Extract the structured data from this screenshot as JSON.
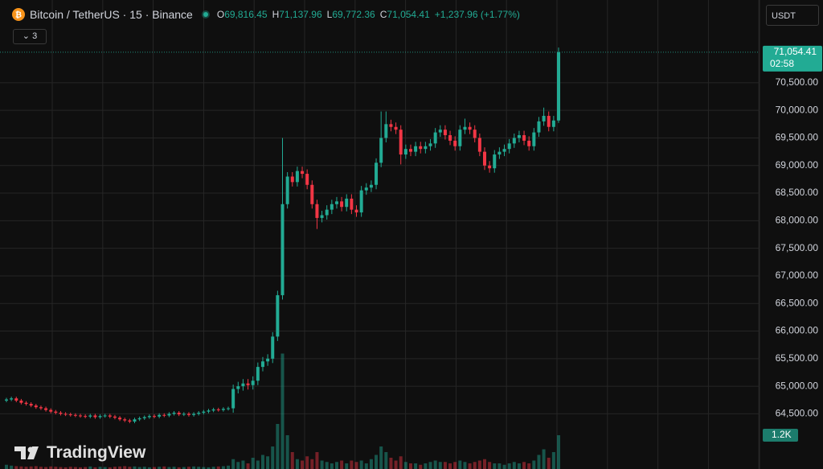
{
  "chart_data": {
    "type": "candlestick",
    "legend": {
      "symbol": "Bitcoin / TetherUS · 15 · Binance",
      "o_label": "O",
      "o": "69,816.45",
      "h_label": "H",
      "h": "71,137.96",
      "l_label": "L",
      "l": "69,772.36",
      "c_label": "C",
      "c": "71,054.41",
      "change": "+1,237.96 (+1.77%)"
    },
    "indicators_count": "3",
    "currency": "USDT",
    "last_price_label": "71,054.41",
    "countdown": "02:58",
    "last_volume_label": "1.2K",
    "brand": "TradingView",
    "up_color": "#22ab94",
    "down_color": "#f23645",
    "ylim": [
      63500,
      72000
    ],
    "yticks": [
      {
        "value": 64500,
        "label": "64,500.00"
      },
      {
        "value": 65000,
        "label": "65,000.00"
      },
      {
        "value": 65500,
        "label": "65,500.00"
      },
      {
        "value": 66000,
        "label": "66,000.00"
      },
      {
        "value": 66500,
        "label": "66,500.00"
      },
      {
        "value": 67000,
        "label": "67,000.00"
      },
      {
        "value": 67500,
        "label": "67,500.00"
      },
      {
        "value": 68000,
        "label": "68,000.00"
      },
      {
        "value": 68500,
        "label": "68,500.00"
      },
      {
        "value": 69000,
        "label": "69,000.00"
      },
      {
        "value": 69500,
        "label": "69,500.00"
      },
      {
        "value": 70000,
        "label": "70,000.00"
      },
      {
        "value": 70500,
        "label": "70,500.00"
      }
    ],
    "volume_ylim": [
      0,
      4200
    ],
    "grid": true,
    "open": [
      64740,
      64760,
      64780,
      64740,
      64700,
      64680,
      64650,
      64620,
      64600,
      64570,
      64540,
      64520,
      64500,
      64490,
      64480,
      64470,
      64460,
      64450,
      64470,
      64440,
      64460,
      64470,
      64450,
      64430,
      64400,
      64380,
      64360,
      64400,
      64420,
      64440,
      64460,
      64450,
      64480,
      64470,
      64500,
      64520,
      64490,
      64500,
      64480,
      64500,
      64520,
      64540,
      64560,
      64580,
      64570,
      64590,
      64600,
      64950,
      65000,
      65050,
      65020,
      65100,
      65350,
      65450,
      65500,
      65900,
      66650,
      68300,
      68800,
      68700,
      68900,
      68850,
      68650,
      68300,
      68050,
      68100,
      68200,
      68300,
      68350,
      68250,
      68400,
      68200,
      68150,
      68550,
      68600,
      68650,
      69050,
      69500,
      69750,
      69700,
      69650,
      69200,
      69300,
      69250,
      69350,
      69300,
      69350,
      69400,
      69600,
      69650,
      69550,
      69450,
      69350,
      69650,
      69700,
      69650,
      69500,
      69250,
      69000,
      68950,
      69200,
      69250,
      69300,
      69400,
      69500,
      69550,
      69450,
      69350,
      69600,
      69800,
      69900,
      69700,
      69816.45
    ],
    "high": [
      64790,
      64810,
      64810,
      64770,
      64730,
      64710,
      64680,
      64650,
      64630,
      64600,
      64570,
      64550,
      64530,
      64520,
      64510,
      64500,
      64490,
      64500,
      64500,
      64490,
      64500,
      64500,
      64480,
      64460,
      64430,
      64410,
      64430,
      64450,
      64470,
      64490,
      64490,
      64510,
      64510,
      64530,
      64550,
      64550,
      64530,
      64530,
      64530,
      64550,
      64570,
      64590,
      64610,
      64610,
      64620,
      64630,
      65030,
      65080,
      65130,
      65130,
      65180,
      65430,
      65530,
      65580,
      65980,
      66730,
      69500,
      68880,
      68880,
      68980,
      68980,
      68930,
      68730,
      68380,
      68180,
      68280,
      68380,
      68430,
      68430,
      68480,
      68480,
      68280,
      68630,
      68680,
      68730,
      69130,
      69980,
      69980,
      69830,
      69780,
      69730,
      69380,
      69380,
      69430,
      69430,
      69430,
      69480,
      69680,
      69730,
      69730,
      69630,
      69530,
      69730,
      69850,
      69780,
      69730,
      69580,
      69330,
      69080,
      69280,
      69330,
      69380,
      69480,
      69580,
      69630,
      69630,
      69530,
      69680,
      69880,
      70050,
      69980,
      69900,
      71137.96
    ],
    "low": [
      64710,
      64730,
      64710,
      64670,
      64650,
      64620,
      64590,
      64570,
      64540,
      64510,
      64490,
      64470,
      64460,
      64450,
      64440,
      64430,
      64420,
      64420,
      64410,
      64410,
      64430,
      64420,
      64400,
      64370,
      64350,
      64330,
      64330,
      64370,
      64390,
      64410,
      64420,
      64420,
      64440,
      64440,
      64470,
      64460,
      64460,
      64450,
      64450,
      64470,
      64490,
      64510,
      64530,
      64540,
      64540,
      64560,
      64520,
      64870,
      64920,
      64940,
      64940,
      65020,
      65270,
      65370,
      65420,
      65820,
      66570,
      68220,
      68620,
      68620,
      68770,
      68570,
      68220,
      67850,
      67970,
      68020,
      68120,
      68220,
      68170,
      68170,
      68120,
      68070,
      68070,
      68470,
      68520,
      68570,
      68970,
      69420,
      69620,
      69570,
      69020,
      69120,
      69170,
      69170,
      69220,
      69220,
      69270,
      69320,
      69520,
      69470,
      69370,
      69270,
      69270,
      69570,
      69570,
      69420,
      69170,
      68920,
      68870,
      68870,
      69120,
      69170,
      69220,
      69320,
      69420,
      69370,
      69270,
      69270,
      69520,
      69720,
      69620,
      69620,
      69772.36
    ],
    "close": [
      64760,
      64780,
      64740,
      64700,
      64680,
      64650,
      64620,
      64600,
      64570,
      64540,
      64520,
      64500,
      64490,
      64480,
      64470,
      64460,
      64450,
      64470,
      64440,
      64460,
      64470,
      64450,
      64430,
      64400,
      64380,
      64360,
      64400,
      64420,
      64440,
      64460,
      64450,
      64480,
      64470,
      64500,
      64520,
      64490,
      64500,
      64480,
      64500,
      64520,
      64540,
      64560,
      64580,
      64570,
      64590,
      64600,
      64950,
      65000,
      65050,
      65020,
      65100,
      65350,
      65450,
      65500,
      65900,
      66650,
      68300,
      68800,
      68700,
      68900,
      68850,
      68650,
      68300,
      68050,
      68100,
      68200,
      68300,
      68350,
      68250,
      68400,
      68200,
      68150,
      68550,
      68600,
      68650,
      69050,
      69500,
      69750,
      69700,
      69650,
      69200,
      69300,
      69250,
      69350,
      69300,
      69350,
      69400,
      69600,
      69650,
      69550,
      69450,
      69350,
      69650,
      69700,
      69650,
      69500,
      69250,
      69000,
      68950,
      69200,
      69250,
      69300,
      69400,
      69500,
      69550,
      69450,
      69350,
      69600,
      69800,
      69900,
      69700,
      69816.45,
      71054.41
    ],
    "volume": [
      150,
      120,
      100,
      90,
      80,
      90,
      100,
      80,
      70,
      90,
      80,
      70,
      60,
      80,
      70,
      60,
      70,
      90,
      60,
      80,
      70,
      60,
      80,
      90,
      100,
      80,
      90,
      70,
      80,
      60,
      70,
      80,
      90,
      70,
      80,
      60,
      70,
      80,
      90,
      80,
      70,
      60,
      80,
      90,
      100,
      120,
      350,
      250,
      300,
      200,
      400,
      300,
      500,
      450,
      800,
      1600,
      4100,
      1200,
      600,
      350,
      300,
      450,
      350,
      600,
      300,
      250,
      200,
      250,
      300,
      200,
      300,
      250,
      300,
      200,
      350,
      500,
      800,
      600,
      400,
      300,
      450,
      250,
      200,
      200,
      150,
      200,
      250,
      300,
      250,
      250,
      200,
      250,
      300,
      250,
      200,
      250,
      300,
      350,
      250,
      200,
      200,
      150,
      200,
      250,
      200,
      250,
      200,
      300,
      500,
      700,
      400,
      600,
      1200
    ]
  }
}
